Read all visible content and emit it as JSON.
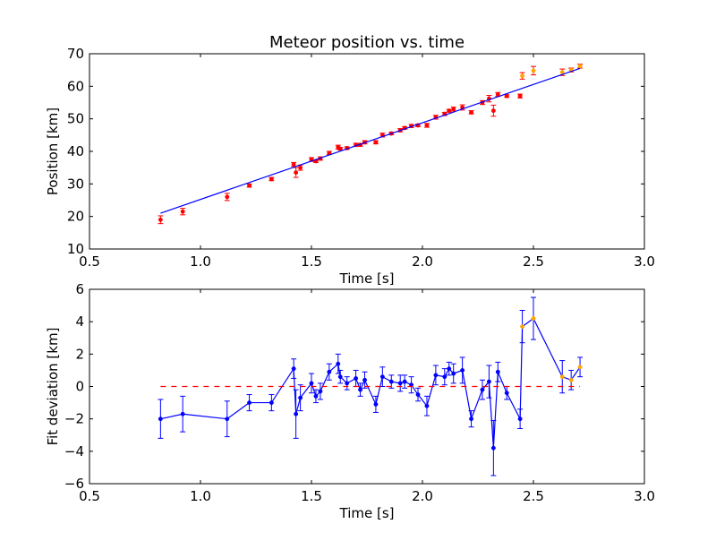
{
  "chart_data": [
    {
      "type": "scatter",
      "title": "Meteor position vs. time",
      "xlabel": "Time [s]",
      "ylabel": "Position [km]",
      "xlim": [
        0.5,
        3.0
      ],
      "ylim": [
        10,
        70
      ],
      "xticks": [
        0.5,
        1.0,
        1.5,
        2.0,
        2.5,
        3.0
      ],
      "xtick_labels": [
        "0.5",
        "1.0",
        "1.5",
        "2.0",
        "2.5",
        "3.0"
      ],
      "yticks": [
        10,
        20,
        30,
        40,
        50,
        60,
        70
      ],
      "ytick_labels": [
        "10",
        "20",
        "30",
        "40",
        "50",
        "60",
        "70"
      ],
      "grid": false,
      "series": [
        {
          "kind": "errorbar",
          "color": "#ff0000",
          "err_color": "#ff0000",
          "x": [
            0.82,
            0.92,
            1.12,
            1.22,
            1.32,
            1.42,
            1.43,
            1.45,
            1.5,
            1.52,
            1.54,
            1.58,
            1.62,
            1.63,
            1.66,
            1.7,
            1.72,
            1.74,
            1.79,
            1.82,
            1.86,
            1.9,
            1.92,
            1.95,
            1.98,
            2.02,
            2.06,
            2.1,
            2.12,
            2.14,
            2.18,
            2.22,
            2.27,
            2.3,
            2.32,
            2.34,
            2.38,
            2.44
          ],
          "y": [
            19.0,
            21.5,
            26.0,
            29.5,
            31.5,
            36.0,
            33.5,
            35.0,
            37.5,
            37.0,
            37.8,
            39.5,
            41.3,
            40.8,
            41.0,
            42.0,
            42.0,
            42.8,
            42.8,
            45.0,
            45.5,
            46.5,
            47.2,
            47.8,
            48.0,
            48.0,
            50.5,
            51.5,
            52.5,
            53.0,
            53.5,
            52.0,
            55.0,
            56.2,
            52.5,
            57.5,
            57.0,
            57.0
          ],
          "err": [
            1.2,
            1.0,
            1.1,
            0.5,
            0.5,
            0.6,
            1.5,
            0.8,
            0.6,
            0.4,
            0.5,
            0.5,
            0.6,
            0.4,
            0.4,
            0.5,
            0.4,
            0.5,
            0.5,
            0.6,
            0.4,
            0.5,
            0.4,
            0.5,
            0.4,
            0.6,
            0.6,
            0.5,
            0.4,
            0.6,
            0.8,
            0.5,
            0.6,
            1.0,
            1.7,
            0.6,
            0.4,
            0.6
          ]
        },
        {
          "kind": "errorbar",
          "color": "#ffa500",
          "err_color": "#ff0000",
          "x": [
            2.45,
            2.5,
            2.63,
            2.67,
            2.71
          ],
          "y": [
            63.2,
            64.8,
            64.3,
            65.0,
            66.2
          ],
          "err": [
            1.0,
            1.3,
            1.0,
            0.6,
            0.6
          ]
        },
        {
          "kind": "line",
          "color": "#0000ff",
          "x": [
            0.82,
            2.71
          ],
          "y": [
            21.0,
            65.5
          ]
        }
      ]
    },
    {
      "type": "line",
      "title": "",
      "xlabel": "Time [s]",
      "ylabel": "Fit deviation [km]",
      "xlim": [
        0.5,
        3.0
      ],
      "ylim": [
        -6,
        6
      ],
      "xticks": [
        0.5,
        1.0,
        1.5,
        2.0,
        2.5,
        3.0
      ],
      "xtick_labels": [
        "0.5",
        "1.0",
        "1.5",
        "2.0",
        "2.5",
        "3.0"
      ],
      "yticks": [
        -6,
        -4,
        -2,
        0,
        2,
        4,
        6
      ],
      "ytick_labels": [
        "−6",
        "−4",
        "−2",
        "0",
        "2",
        "4",
        "6"
      ],
      "grid": false,
      "series": [
        {
          "kind": "errorbar_line",
          "color": "#0000ff",
          "x": [
            0.82,
            0.92,
            1.12,
            1.22,
            1.32,
            1.42,
            1.43,
            1.45,
            1.5,
            1.52,
            1.54,
            1.58,
            1.62,
            1.63,
            1.66,
            1.7,
            1.72,
            1.74,
            1.79,
            1.82,
            1.86,
            1.9,
            1.92,
            1.95,
            1.98,
            2.02,
            2.06,
            2.1,
            2.12,
            2.14,
            2.18,
            2.22,
            2.27,
            2.3,
            2.32,
            2.34,
            2.38,
            2.44,
            2.45,
            2.5,
            2.63,
            2.67,
            2.71
          ],
          "y": [
            -2.0,
            -1.7,
            -2.0,
            -1.0,
            -1.0,
            1.1,
            -1.7,
            -0.7,
            0.2,
            -0.6,
            -0.3,
            0.9,
            1.4,
            0.6,
            0.2,
            0.5,
            -0.2,
            0.4,
            -1.1,
            0.6,
            0.3,
            0.2,
            0.3,
            0.1,
            -0.5,
            -1.2,
            0.7,
            0.6,
            1.1,
            0.8,
            1.0,
            -2.0,
            -0.2,
            0.3,
            -3.8,
            0.9,
            -0.4,
            -2.0,
            3.7,
            4.2,
            0.6,
            0.4,
            1.2
          ],
          "err": [
            1.2,
            1.1,
            1.1,
            0.5,
            0.5,
            0.6,
            1.5,
            0.8,
            0.6,
            0.4,
            0.5,
            0.5,
            0.6,
            0.4,
            0.4,
            0.5,
            0.4,
            0.5,
            0.5,
            0.6,
            0.4,
            0.5,
            0.4,
            0.5,
            0.4,
            0.6,
            0.6,
            0.5,
            0.4,
            0.6,
            0.8,
            0.5,
            0.6,
            1.0,
            1.7,
            0.6,
            0.4,
            0.6,
            1.0,
            1.3,
            1.0,
            0.6,
            0.6
          ],
          "highlight_from_index": 38,
          "highlight_color": "#ffa500"
        },
        {
          "kind": "reference_line",
          "color": "#ff0000",
          "style": "dashed",
          "x": [
            0.82,
            2.71
          ],
          "y": [
            0,
            0
          ]
        }
      ]
    }
  ]
}
